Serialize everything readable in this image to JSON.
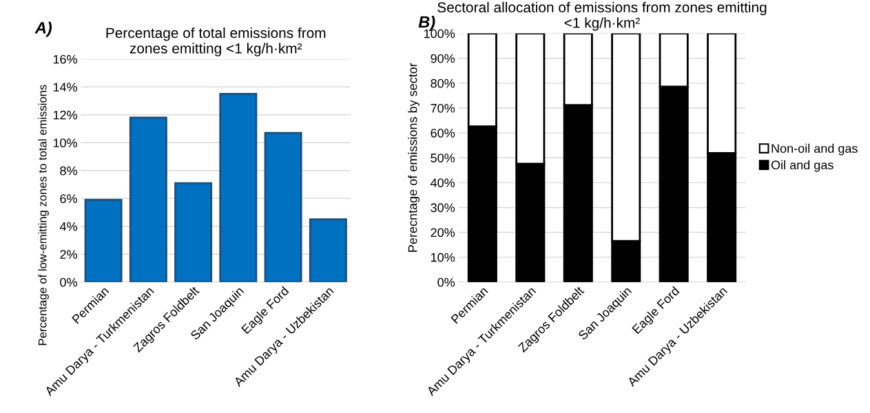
{
  "chart_data": [
    {
      "type": "bar",
      "title": "Percentage of total emissions from\nzones emitting <1 kg/h·km²",
      "ylabel": "Percentage of low-emitting zones to total emissions",
      "annotations": [
        "A)"
      ],
      "categories": [
        "Permian",
        "Amu Darya - Turkmenistan",
        "Zagros Foldbelt",
        "San Joaquin",
        "Eagle Ford",
        "Amu Darya - Uzbekistan"
      ],
      "values": [
        5.9,
        11.8,
        7.1,
        13.5,
        10.7,
        4.5
      ],
      "color": "#0070c0",
      "ylim": [
        0,
        16
      ],
      "yticks": [
        {
          "value": 0,
          "label": "0%"
        },
        {
          "value": 2,
          "label": "2%"
        },
        {
          "value": 4,
          "label": "4%"
        },
        {
          "value": 6,
          "label": "6%"
        },
        {
          "value": 8,
          "label": "8%"
        },
        {
          "value": 10,
          "label": "10%"
        },
        {
          "value": 12,
          "label": "12%"
        },
        {
          "value": 14,
          "label": "14%"
        },
        {
          "value": 16,
          "label": "16%"
        }
      ],
      "grid": "y",
      "legend": false
    },
    {
      "type": "bar",
      "title": "Sectoral allocation of emissions from zones emitting\n<1 kg/h·km²",
      "ylabel": "Perecntage of emissions by sector",
      "annotations": [
        "B)"
      ],
      "categories": [
        "Permian",
        "Amu Darya - Turkmenistan",
        "Zagros Foldbelt",
        "San Joaquin",
        "Eagle Ford",
        "Amu Darya - Uzbekistan"
      ],
      "stacked": true,
      "series": [
        {
          "name": "Oil and gas",
          "color": "#000000",
          "values": [
            62.6,
            47.6,
            71.2,
            16.5,
            78.6,
            51.9
          ]
        },
        {
          "name": "Non-oil and gas",
          "color": "#ffffff",
          "values": [
            37.4,
            52.4,
            28.8,
            83.5,
            21.4,
            48.1
          ]
        }
      ],
      "ylim": [
        0,
        100
      ],
      "yticks": [
        {
          "value": 0,
          "label": "0%"
        },
        {
          "value": 10,
          "label": "10%"
        },
        {
          "value": 20,
          "label": "20%"
        },
        {
          "value": 30,
          "label": "30%"
        },
        {
          "value": 40,
          "label": "40%"
        },
        {
          "value": 50,
          "label": "50%"
        },
        {
          "value": 60,
          "label": "60%"
        },
        {
          "value": 70,
          "label": "70%"
        },
        {
          "value": 80,
          "label": "80%"
        },
        {
          "value": 90,
          "label": "90%"
        },
        {
          "value": 100,
          "label": "100%"
        }
      ],
      "grid": "y",
      "legend": "right"
    }
  ]
}
